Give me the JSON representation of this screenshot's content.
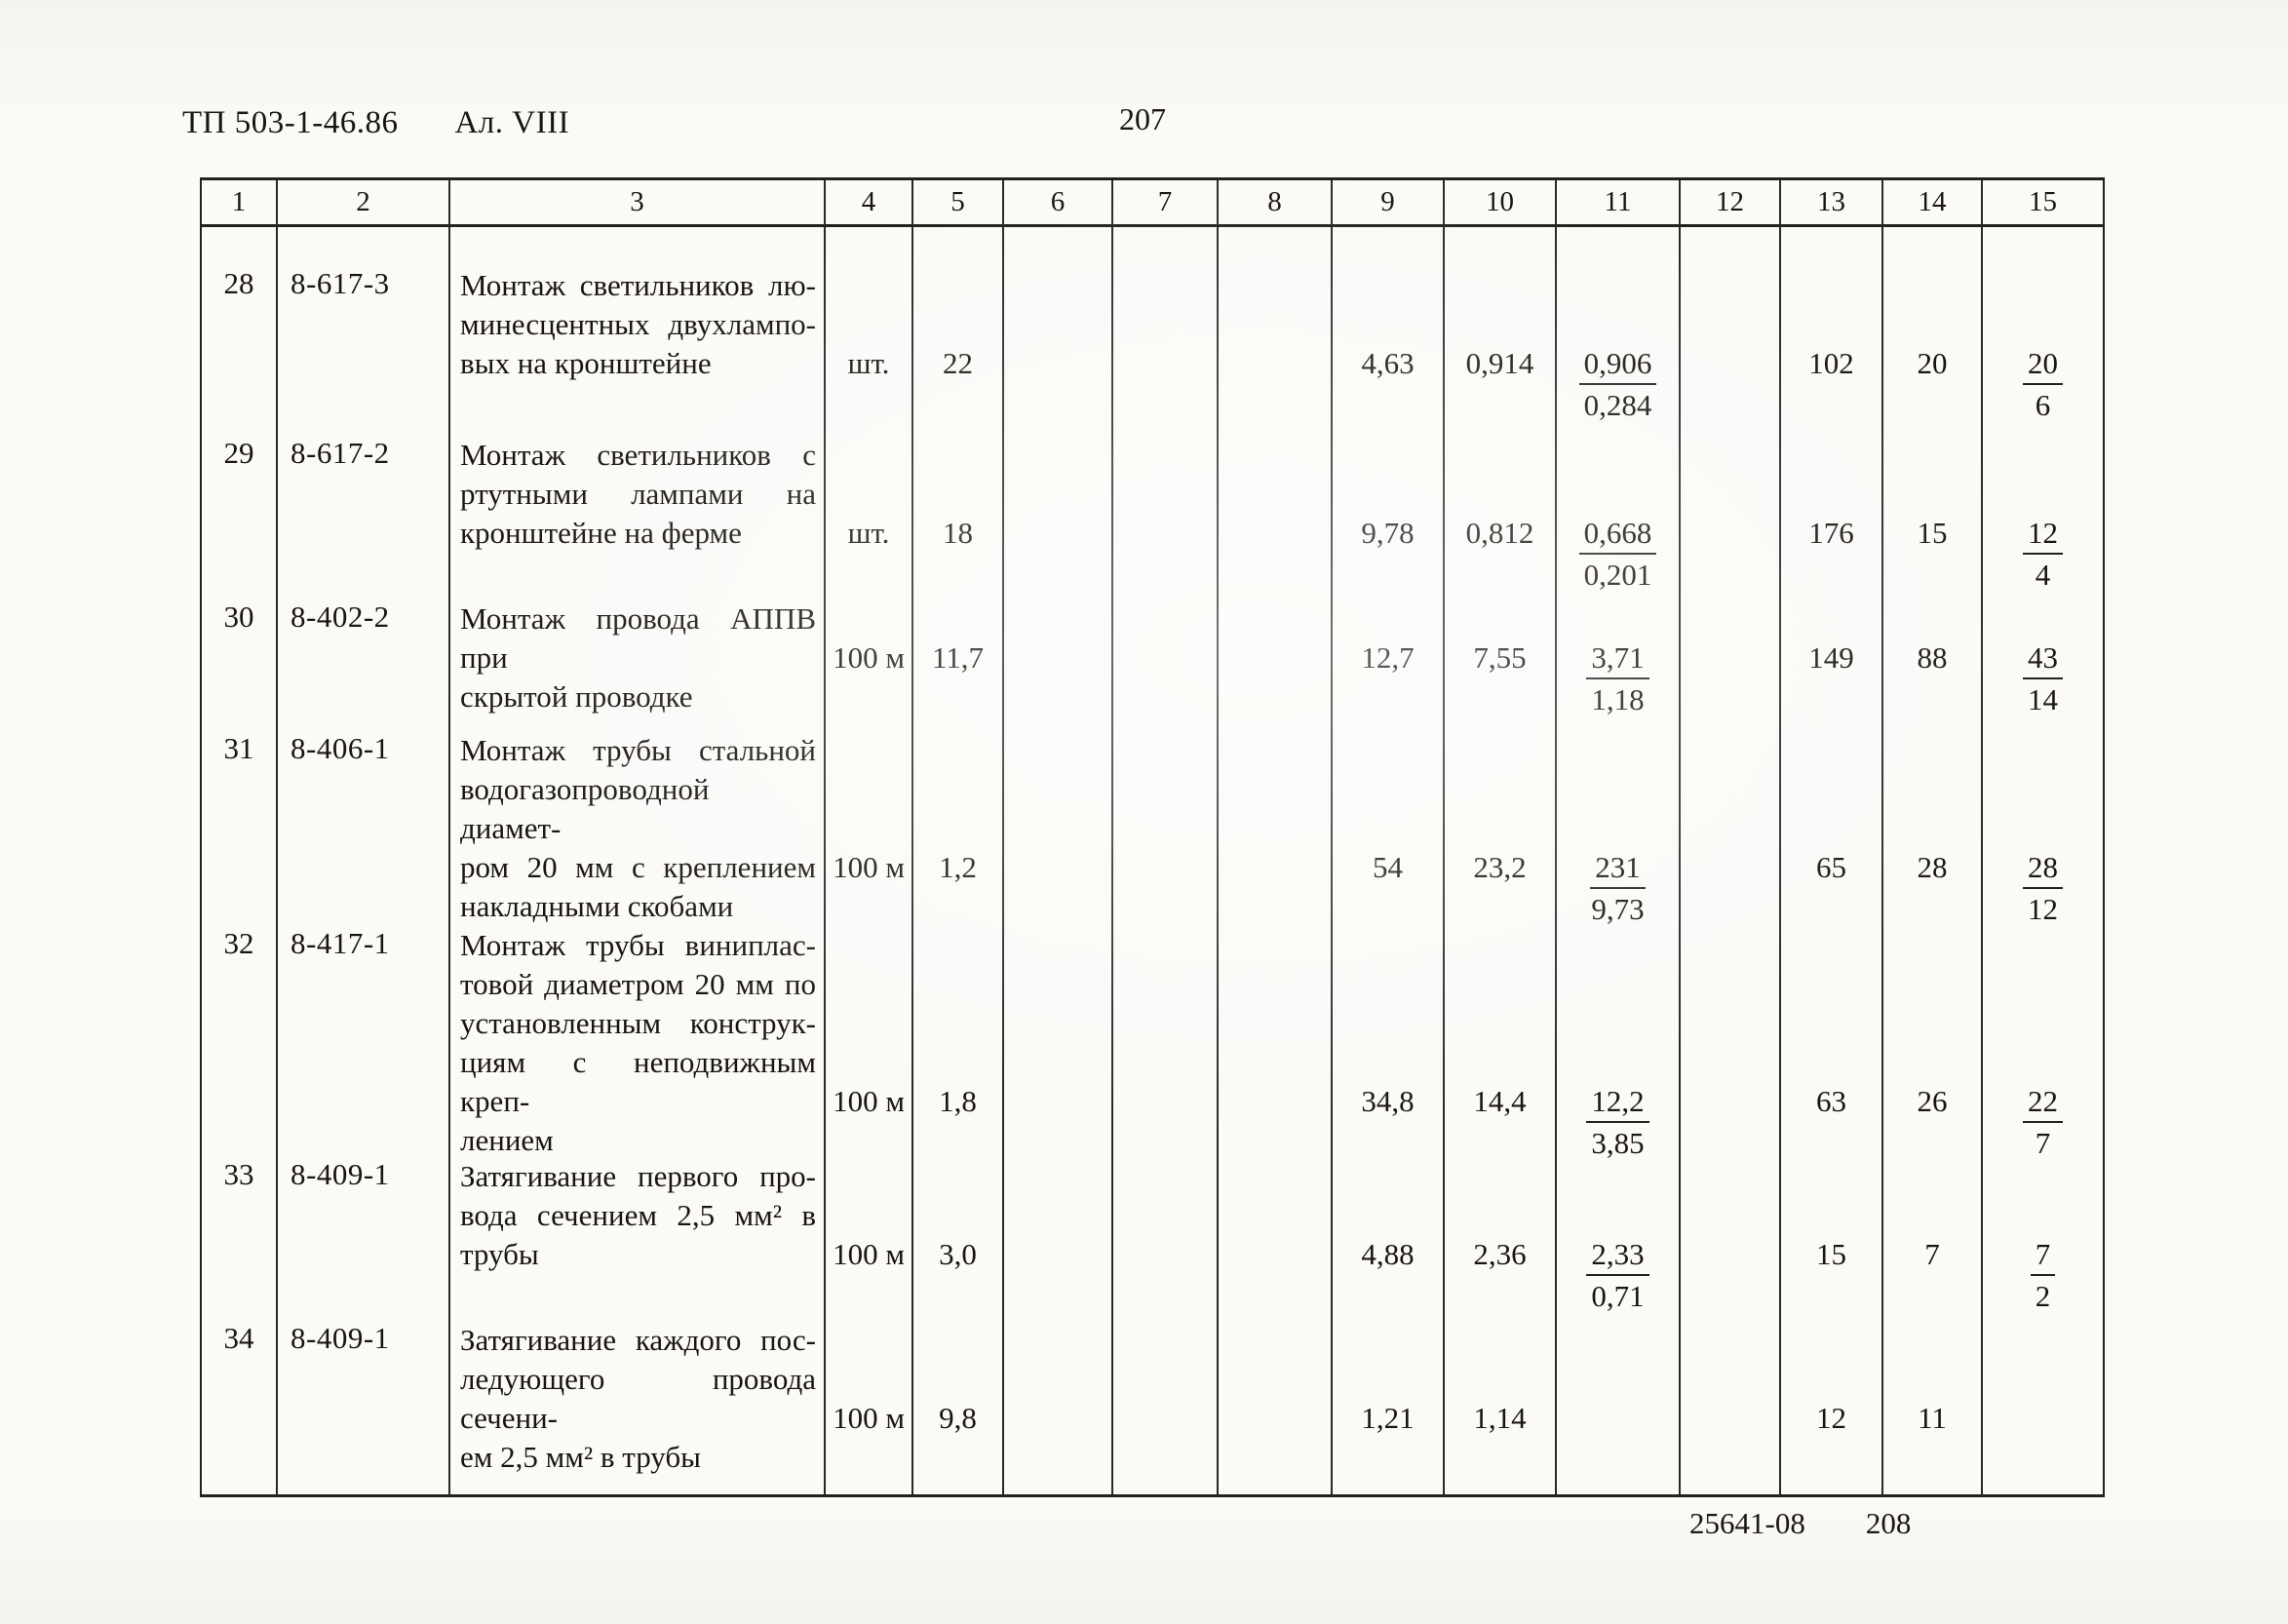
{
  "page": {
    "doc_ref": "ТП 503-1-46.86",
    "album": "Ал. VIII",
    "page_number": "207",
    "footer_code": "25641-08",
    "footer_page": "208"
  },
  "table": {
    "column_numbers": [
      "1",
      "2",
      "3",
      "4",
      "5",
      "6",
      "7",
      "8",
      "9",
      "10",
      "11",
      "12",
      "13",
      "14",
      "15"
    ],
    "rows": [
      {
        "num": "28",
        "code": "8-617-3",
        "description": "Монтаж светильников лю-\nминесцентных двухлампо-\nвых на кронштейне",
        "unit": "шт.",
        "quantity": "22",
        "c6": "",
        "c7": "",
        "c8": "",
        "c9": "4,63",
        "c10": "0,914",
        "c11": {
          "num": "0,906",
          "den": "0,284"
        },
        "c12": "",
        "c13": "102",
        "c14": "20",
        "c15": {
          "num": "20",
          "den": "6"
        }
      },
      {
        "num": "29",
        "code": "8-617-2",
        "description": "Монтаж светильников с\nртутными лампами на\nкронштейне на ферме",
        "unit": "шт.",
        "quantity": "18",
        "c6": "",
        "c7": "",
        "c8": "",
        "c9": "9,78",
        "c10": "0,812",
        "c11": {
          "num": "0,668",
          "den": "0,201"
        },
        "c12": "",
        "c13": "176",
        "c14": "15",
        "c15": {
          "num": "12",
          "den": "4"
        }
      },
      {
        "num": "30",
        "code": "8-402-2",
        "description": "Монтаж провода АППВ при\nскрытой проводке",
        "unit": "100 м",
        "quantity": "11,7",
        "c6": "",
        "c7": "",
        "c8": "",
        "c9": "12,7",
        "c10": "7,55",
        "c11": {
          "num": "3,71",
          "den": "1,18"
        },
        "c12": "",
        "c13": "149",
        "c14": "88",
        "c15": {
          "num": "43",
          "den": "14"
        }
      },
      {
        "num": "31",
        "code": "8-406-1",
        "description": "Монтаж трубы стальной\nводогазопроводной диамет-\nром 20 мм с креплением\nнакладными скобами",
        "unit": "100 м",
        "quantity": "1,2",
        "c6": "",
        "c7": "",
        "c8": "",
        "c9": "54",
        "c10": "23,2",
        "c11": {
          "num": "231",
          "den": "9,73"
        },
        "c12": "",
        "c13": "65",
        "c14": "28",
        "c15": {
          "num": "28",
          "den": "12"
        }
      },
      {
        "num": "32",
        "code": "8-417-1",
        "description": "Монтаж трубы виниплас-\nтовой диаметром 20 мм по\nустановленным конструк-\nциям с неподвижным креп-\nлением",
        "unit": "100 м",
        "quantity": "1,8",
        "c6": "",
        "c7": "",
        "c8": "",
        "c9": "34,8",
        "c10": "14,4",
        "c11": {
          "num": "12,2",
          "den": "3,85"
        },
        "c12": "",
        "c13": "63",
        "c14": "26",
        "c15": {
          "num": "22",
          "den": "7"
        }
      },
      {
        "num": "33",
        "code": "8-409-1",
        "description": "Затягивание первого про-\nвода сечением 2,5 мм² в\nтрубы",
        "unit": "100 м",
        "quantity": "3,0",
        "c6": "",
        "c7": "",
        "c8": "",
        "c9": "4,88",
        "c10": "2,36",
        "c11": {
          "num": "2,33",
          "den": "0,71"
        },
        "c12": "",
        "c13": "15",
        "c14": "7",
        "c15": {
          "num": "7",
          "den": "2"
        }
      },
      {
        "num": "34",
        "code": "8-409-1",
        "description": "Затягивание каждого пос-\nледующего провода сечени-\nем 2,5 мм² в трубы",
        "unit": "100 м",
        "quantity": "9,8",
        "c6": "",
        "c7": "",
        "c8": "",
        "c9": "1,21",
        "c10": "1,14",
        "c11": "",
        "c12": "",
        "c13": "12",
        "c14": "11",
        "c15": ""
      }
    ]
  }
}
